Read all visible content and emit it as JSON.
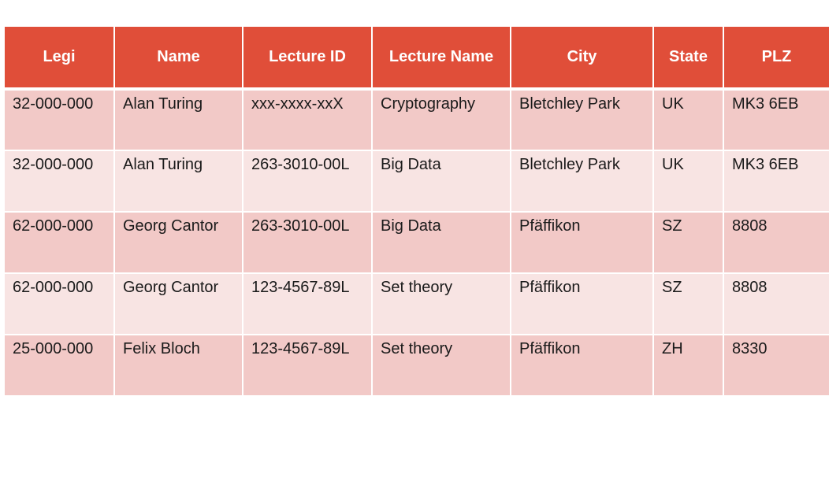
{
  "table": {
    "headers": [
      "Legi",
      "Name",
      "Lecture ID",
      "Lecture Name",
      "City",
      "State",
      "PLZ"
    ],
    "rows": [
      [
        "32-000-000",
        "Alan Turing",
        "xxx-xxxx-xxX",
        "Cryptography",
        "Bletchley Park",
        "UK",
        "MK3 6EB"
      ],
      [
        "32-000-000",
        "Alan Turing",
        "263-3010-00L",
        "Big Data",
        "Bletchley Park",
        "UK",
        "MK3 6EB"
      ],
      [
        "62-000-000",
        "Georg Cantor",
        "263-3010-00L",
        "Big Data",
        "Pfäffikon",
        "SZ",
        "8808"
      ],
      [
        "62-000-000",
        "Georg Cantor",
        "123-4567-89L",
        "Set theory",
        "Pfäffikon",
        "SZ",
        "8808"
      ],
      [
        "25-000-000",
        "Felix Bloch",
        "123-4567-89L",
        "Set theory",
        "Pfäffikon",
        "ZH",
        "8330"
      ]
    ]
  },
  "colors": {
    "header_background": "#e04e39",
    "row_dark": "#f2c9c7",
    "row_light": "#f8e4e3"
  }
}
